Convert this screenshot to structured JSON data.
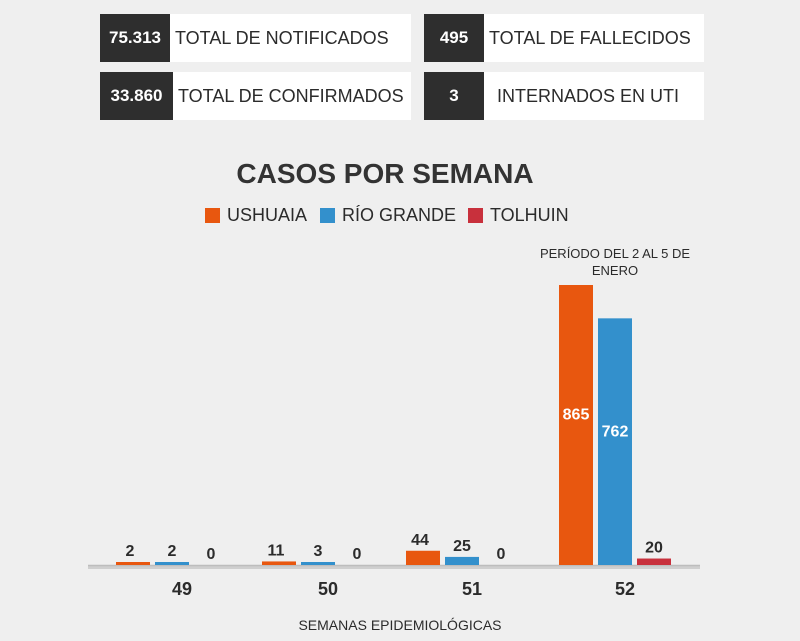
{
  "stats": [
    {
      "value": "75.313",
      "label": "TOTAL DE NOTIFICADOS"
    },
    {
      "value": "33.860",
      "label": "TOTAL DE CONFIRMADOS"
    },
    {
      "value": "495",
      "label": "TOTAL DE FALLECIDOS"
    },
    {
      "value": "3",
      "label": "INTERNADOS EN UTI"
    }
  ],
  "chart_data": {
    "type": "bar",
    "title": "CASOS POR SEMANA",
    "xlabel": "SEMANAS EPIDEMIOLÓGICAS",
    "ylabel": "",
    "categories": [
      "49",
      "50",
      "51",
      "52"
    ],
    "series": [
      {
        "name": "USHUAIA",
        "color": "#e8570f",
        "values": [
          2,
          11,
          44,
          865
        ]
      },
      {
        "name": "RÍO GRANDE",
        "color": "#3390cc",
        "values": [
          2,
          3,
          25,
          762
        ]
      },
      {
        "name": "TOLHUIN",
        "color": "#c8303c",
        "values": [
          0,
          0,
          0,
          20
        ]
      }
    ],
    "ylim": [
      0,
      865
    ],
    "grid": false,
    "legend": "top-center",
    "annotation": "PERÍODO DEL 2 AL 5 DE ENERO"
  }
}
